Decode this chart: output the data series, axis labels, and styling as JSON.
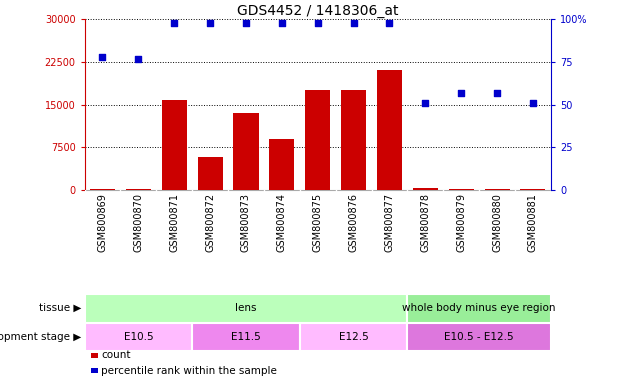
{
  "title": "GDS4452 / 1418306_at",
  "samples": [
    "GSM800869",
    "GSM800870",
    "GSM800871",
    "GSM800872",
    "GSM800873",
    "GSM800874",
    "GSM800875",
    "GSM800876",
    "GSM800877",
    "GSM800878",
    "GSM800879",
    "GSM800880",
    "GSM800881"
  ],
  "counts": [
    200,
    150,
    15800,
    5800,
    13500,
    9000,
    17500,
    17500,
    21000,
    300,
    200,
    200,
    250
  ],
  "percentile": [
    78,
    77,
    98,
    98,
    98,
    98,
    98,
    98,
    98,
    51,
    57,
    57,
    51
  ],
  "bar_color": "#cc0000",
  "dot_color": "#0000cc",
  "ylim_left": [
    0,
    30000
  ],
  "ylim_right": [
    0,
    100
  ],
  "yticks_left": [
    0,
    7500,
    15000,
    22500,
    30000
  ],
  "ytick_labels_left": [
    "0",
    "7500",
    "15000",
    "22500",
    "30000"
  ],
  "yticks_right": [
    0,
    25,
    50,
    75,
    100
  ],
  "ytick_labels_right": [
    "0",
    "25",
    "50",
    "75",
    "100%"
  ],
  "tissue_groups": [
    {
      "label": "lens",
      "start": 0,
      "end": 9,
      "color": "#bbffbb"
    },
    {
      "label": "whole body minus eye region",
      "start": 9,
      "end": 13,
      "color": "#99ee99"
    }
  ],
  "stage_groups": [
    {
      "label": "E10.5",
      "start": 0,
      "end": 3,
      "color": "#ffbbff"
    },
    {
      "label": "E11.5",
      "start": 3,
      "end": 6,
      "color": "#ee88ee"
    },
    {
      "label": "E12.5",
      "start": 6,
      "end": 9,
      "color": "#ffbbff"
    },
    {
      "label": "E10.5 - E12.5",
      "start": 9,
      "end": 13,
      "color": "#dd77dd"
    }
  ],
  "legend_count_color": "#cc0000",
  "legend_dot_color": "#0000cc",
  "background_color": "#ffffff",
  "grid_color": "#000000",
  "title_fontsize": 10,
  "tick_fontsize": 7,
  "label_fontsize": 7.5,
  "row_label_tissue": "tissue",
  "row_label_stage": "development stage",
  "left_label_color": "#cc0000",
  "right_label_color": "#0000cc",
  "xtick_bg_color": "#cccccc"
}
